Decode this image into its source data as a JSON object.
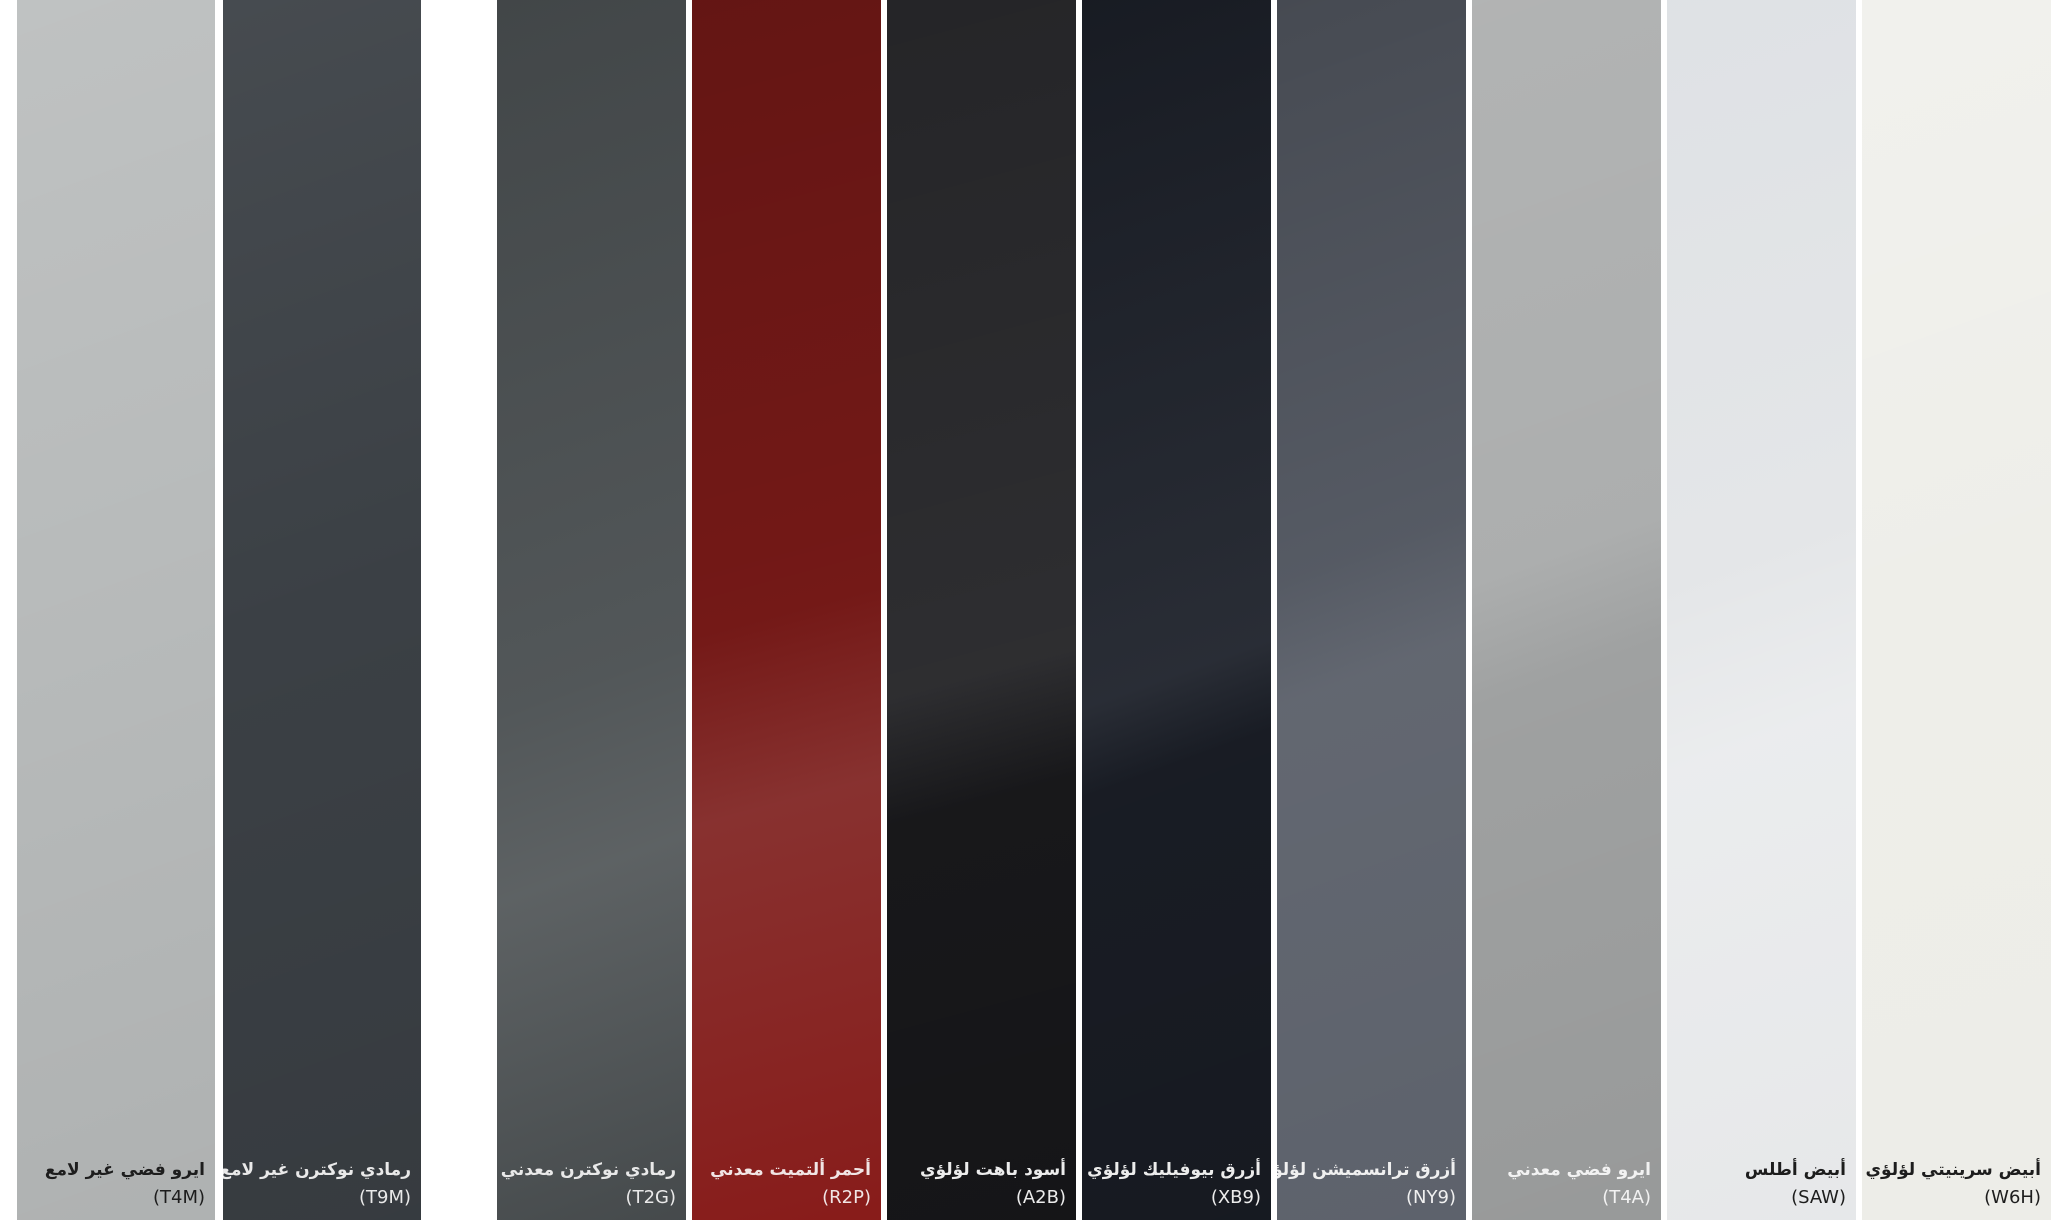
{
  "swatches": [
    {
      "name": "ايرو فضي غير لامع",
      "code": "(T4M)",
      "color": "#b8bbbb",
      "text_color": "#1d1d1d"
    },
    {
      "name": "رمادي نوكترن غير لامع",
      "code": "(T9M)",
      "color": "#3b4045",
      "text_color": "#e9e9e9"
    },
    {
      "name": "رمادي نوكترن معدني",
      "code": "(T2G)",
      "color": "#4b5052",
      "text_color": "#e9e9e9"
    },
    {
      "name": "أحمر ألتميت معدني",
      "code": "(R2P)",
      "color": "#7a1a18",
      "text_color": "#f1e5e5"
    },
    {
      "name": "أسود باهت لؤلؤي",
      "code": "(A2B)",
      "color": "#1c1c1f",
      "text_color": "#ececec"
    },
    {
      "name": "أزرق بيوفيليك لؤلؤي",
      "code": "(XB9)",
      "color": "#1c2029",
      "text_color": "#ececec"
    },
    {
      "name": "أزرق ترانسميشن لؤلؤي",
      "code": "(NY9)",
      "color": "#5a5f69",
      "text_color": "#f0f0f0"
    },
    {
      "name": "ايرو فضي معدني",
      "code": "(T4A)",
      "color": "#a9abab",
      "text_color": "#f2f2f2"
    },
    {
      "name": "أبيض أطلس",
      "code": "(SAW)",
      "color": "#e4e6e8",
      "text_color": "#1d1d1d"
    },
    {
      "name": "أبيض سرينيتي لؤلؤي",
      "code": "(W6H)",
      "color": "#eeeee9",
      "text_color": "#1d1d1d"
    }
  ]
}
